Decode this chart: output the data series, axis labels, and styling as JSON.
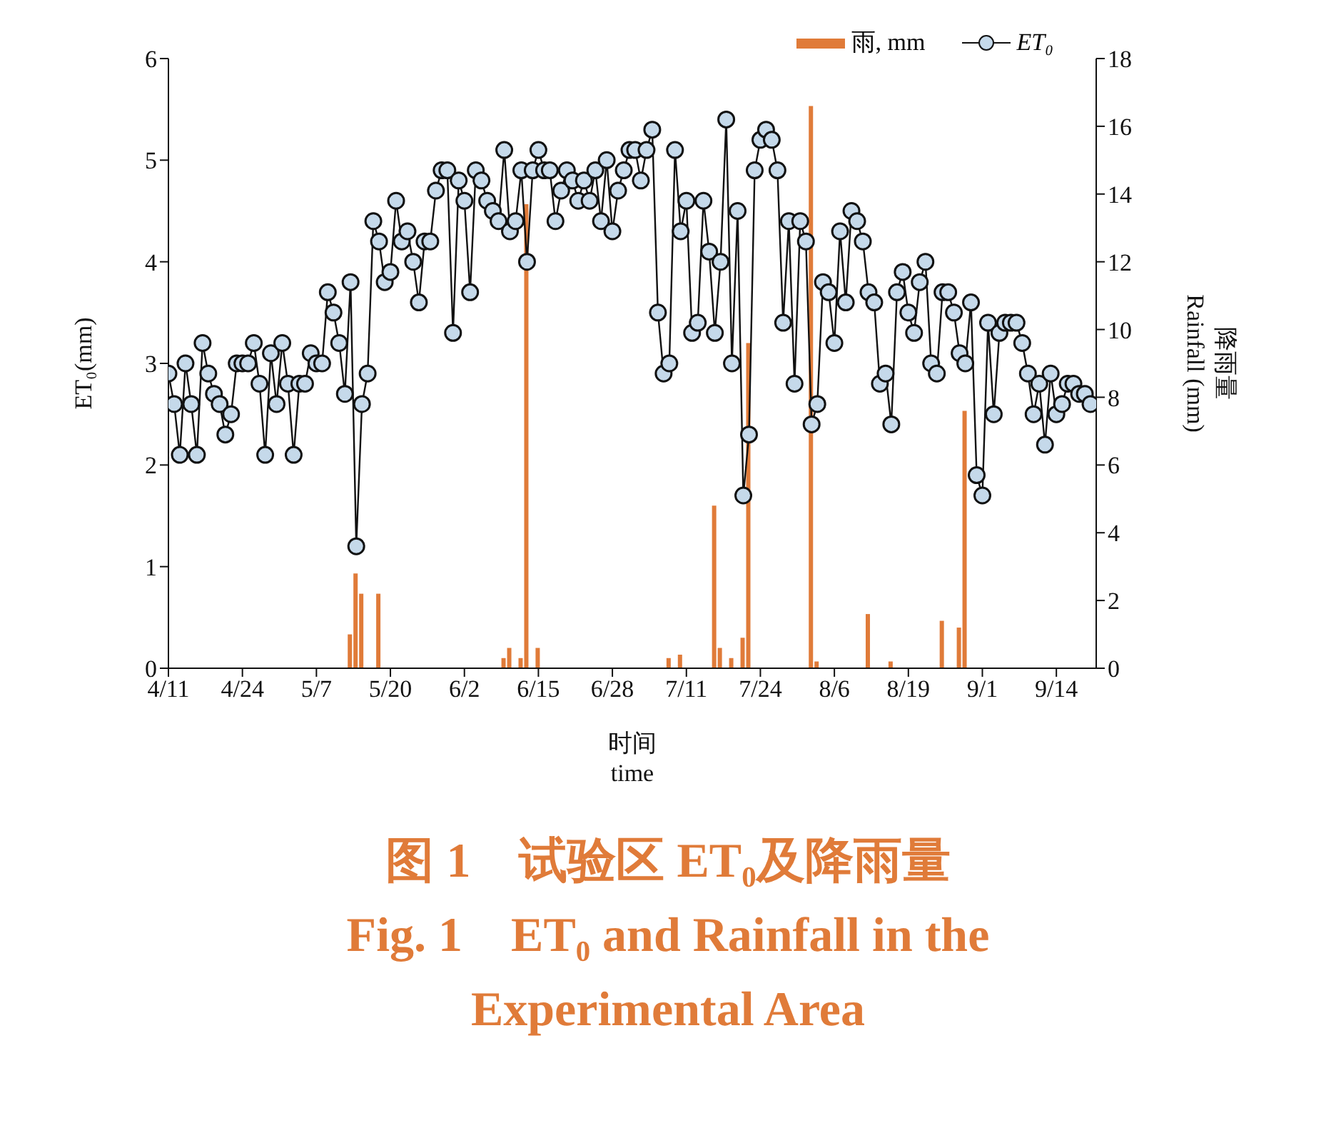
{
  "chart_data": {
    "type": "line",
    "title": "图 1　试验区 ET₀及降雨量",
    "subtitle": "Fig. 1　ET₀ and Rainfall in the Experimental Area",
    "xlabel": "时间\ntime",
    "ylabel": "ET₀(mm)",
    "y2label": "降雨量\nRainfall (mm)",
    "x": [
      "--04-11",
      "--04-12",
      "--04-13",
      "--04-14",
      "--04-15",
      "--04-16",
      "--04-17",
      "--04-18",
      "--04-19",
      "--04-20",
      "--04-21",
      "--04-22",
      "--04-23",
      "--04-24",
      "--04-25",
      "--04-26",
      "--04-27",
      "--04-28",
      "--04-29",
      "--04-30",
      "--05-01",
      "--05-02",
      "--05-03",
      "--05-04",
      "--05-05",
      "--05-06",
      "--05-07",
      "--05-08",
      "--05-09",
      "--05-10",
      "--05-11",
      "--05-12",
      "--05-13",
      "--05-14",
      "--05-15",
      "--05-16",
      "--05-17",
      "--05-18",
      "--05-19",
      "--05-20",
      "--05-21",
      "--05-22",
      "--05-23",
      "--05-24",
      "--05-25",
      "--05-26",
      "--05-27",
      "--05-28",
      "--05-29",
      "--05-30",
      "--05-31",
      "--06-01",
      "--06-02",
      "--06-03",
      "--06-04",
      "--06-05",
      "--06-06",
      "--06-07",
      "--06-08",
      "--06-09",
      "--06-10",
      "--06-11",
      "--06-12",
      "--06-13",
      "--06-14",
      "--06-15",
      "--06-16",
      "--06-17",
      "--06-18",
      "--06-19",
      "--06-20",
      "--06-21",
      "--06-22",
      "--06-23",
      "--06-24",
      "--06-25",
      "--06-26",
      "--06-27",
      "--06-28",
      "--06-29",
      "--06-30",
      "--07-01",
      "--07-02",
      "--07-03",
      "--07-04",
      "--07-05",
      "--07-06",
      "--07-07",
      "--07-08",
      "--07-09",
      "--07-10",
      "--07-11",
      "--07-12",
      "--07-13",
      "--07-14",
      "--07-15",
      "--07-16",
      "--07-17",
      "--07-18",
      "--07-19",
      "--07-20",
      "--07-21",
      "--07-22",
      "--07-23",
      "--07-24",
      "--07-25",
      "--07-26",
      "--07-27",
      "--07-28",
      "--07-29",
      "--07-30",
      "--07-31",
      "--08-01",
      "--08-02",
      "--08-03",
      "--08-04",
      "--08-05",
      "--08-06",
      "--08-07",
      "--08-08",
      "--08-09",
      "--08-10",
      "--08-11",
      "--08-12",
      "--08-13",
      "--08-14",
      "--08-15",
      "--08-16",
      "--08-17",
      "--08-18",
      "--08-19",
      "--08-20",
      "--08-21",
      "--08-22",
      "--08-23",
      "--08-24",
      "--08-25",
      "--08-26",
      "--08-27",
      "--08-28",
      "--08-29",
      "--08-30",
      "--08-31",
      "--09-01",
      "--09-02",
      "--09-03",
      "--09-04",
      "--09-05",
      "--09-06",
      "--09-07",
      "--09-08",
      "--09-09",
      "--09-10",
      "--09-11",
      "--09-12",
      "--09-13",
      "--09-14",
      "--09-15",
      "--09-16",
      "--09-17",
      "--09-18",
      "--09-19",
      "--09-20"
    ],
    "series": [
      {
        "name": "雨, mm",
        "type": "bar",
        "axis": "y2",
        "color": "#e07b39",
        "x": [
          "--05-13",
          "--05-14",
          "--05-15",
          "--05-18",
          "--06-09",
          "--06-10",
          "--06-12",
          "--06-13",
          "--06-15",
          "--07-08",
          "--07-10",
          "--07-16",
          "--07-17",
          "--07-19",
          "--07-21",
          "--07-22",
          "--08-02",
          "--08-03",
          "--08-12",
          "--08-16",
          "--08-25",
          "--08-28",
          "--08-29"
        ],
        "values": [
          1.0,
          2.8,
          2.2,
          2.2,
          0.3,
          0.6,
          0.3,
          13.7,
          0.6,
          0.3,
          0.4,
          4.8,
          0.6,
          0.3,
          0.9,
          9.6,
          16.6,
          0.2,
          1.6,
          0.2,
          1.4,
          1.2,
          7.6
        ]
      },
      {
        "name": "ET₀",
        "color": "#c5d9ea",
        "values": [
          2.9,
          2.6,
          2.1,
          3.0,
          2.6,
          2.1,
          3.2,
          2.9,
          2.7,
          2.6,
          2.3,
          2.5,
          3.0,
          3.0,
          3.0,
          3.2,
          2.8,
          2.1,
          3.1,
          2.6,
          3.2,
          2.8,
          2.1,
          2.8,
          2.8,
          3.1,
          3.0,
          3.0,
          3.7,
          3.5,
          3.2,
          2.7,
          3.8,
          1.2,
          2.6,
          2.9,
          4.4,
          4.2,
          3.8,
          3.9,
          4.6,
          4.2,
          4.3,
          4.0,
          3.6,
          4.2,
          4.2,
          4.7,
          4.9,
          4.9,
          3.3,
          4.8,
          4.6,
          3.7,
          4.9,
          4.8,
          4.6,
          4.5,
          4.4,
          5.1,
          4.3,
          4.4,
          4.9,
          4.0,
          4.9,
          5.1,
          4.9,
          4.9,
          4.4,
          4.7,
          4.9,
          4.8,
          4.6,
          4.8,
          4.6,
          4.9,
          4.4,
          5.0,
          4.3,
          4.7,
          4.9,
          5.1,
          5.1,
          4.8,
          5.1,
          5.3,
          3.5,
          2.9,
          3.0,
          5.1,
          4.3,
          4.6,
          3.3,
          3.4,
          4.6,
          4.1,
          3.3,
          4.0,
          5.4,
          3.0,
          4.5,
          1.7,
          2.3,
          4.9,
          5.2,
          5.3,
          5.2,
          4.9,
          3.4,
          4.4,
          2.8,
          4.4,
          4.2,
          2.4,
          2.6,
          3.8,
          3.7,
          3.2,
          4.3,
          3.6,
          4.5,
          4.4,
          4.2,
          3.7,
          3.6,
          2.8,
          2.9,
          2.4,
          3.7,
          3.9,
          3.5,
          3.3,
          3.8,
          4.0,
          3.0,
          2.9,
          3.7,
          3.7,
          3.5,
          3.1,
          3.0,
          3.6,
          1.9,
          1.7,
          3.4,
          2.5,
          3.3,
          3.4,
          3.4,
          3.4,
          3.2,
          2.9,
          2.5,
          2.8,
          2.2,
          2.9,
          2.5,
          2.6,
          2.8,
          2.8,
          2.7,
          2.7,
          2.6
        ]
      }
    ],
    "xlim": [
      "--04-11",
      "--09-21"
    ],
    "xticks": [
      {
        "value": "--04-11",
        "label": "4/11"
      },
      {
        "value": "--04-24",
        "label": "4/24"
      },
      {
        "value": "--05-07",
        "label": "5/7"
      },
      {
        "value": "--05-20",
        "label": "5/20"
      },
      {
        "value": "--06-02",
        "label": "6/2"
      },
      {
        "value": "--06-15",
        "label": "6/15"
      },
      {
        "value": "--06-28",
        "label": "6/28"
      },
      {
        "value": "--07-11",
        "label": "7/11"
      },
      {
        "value": "--07-24",
        "label": "7/24"
      },
      {
        "value": "--08-06",
        "label": "8/6"
      },
      {
        "value": "--08-19",
        "label": "8/19"
      },
      {
        "value": "--09-01",
        "label": "9/1"
      },
      {
        "value": "--09-14",
        "label": "9/14"
      }
    ],
    "ylim": [
      0,
      6
    ],
    "yticks": [
      0,
      1,
      2,
      3,
      4,
      5,
      6
    ],
    "y2lim": [
      0,
      18
    ],
    "y2ticks": [
      0,
      2,
      4,
      6,
      8,
      10,
      12,
      14,
      16,
      18
    ],
    "legend": "top right",
    "grid": false,
    "marker": "circle"
  }
}
